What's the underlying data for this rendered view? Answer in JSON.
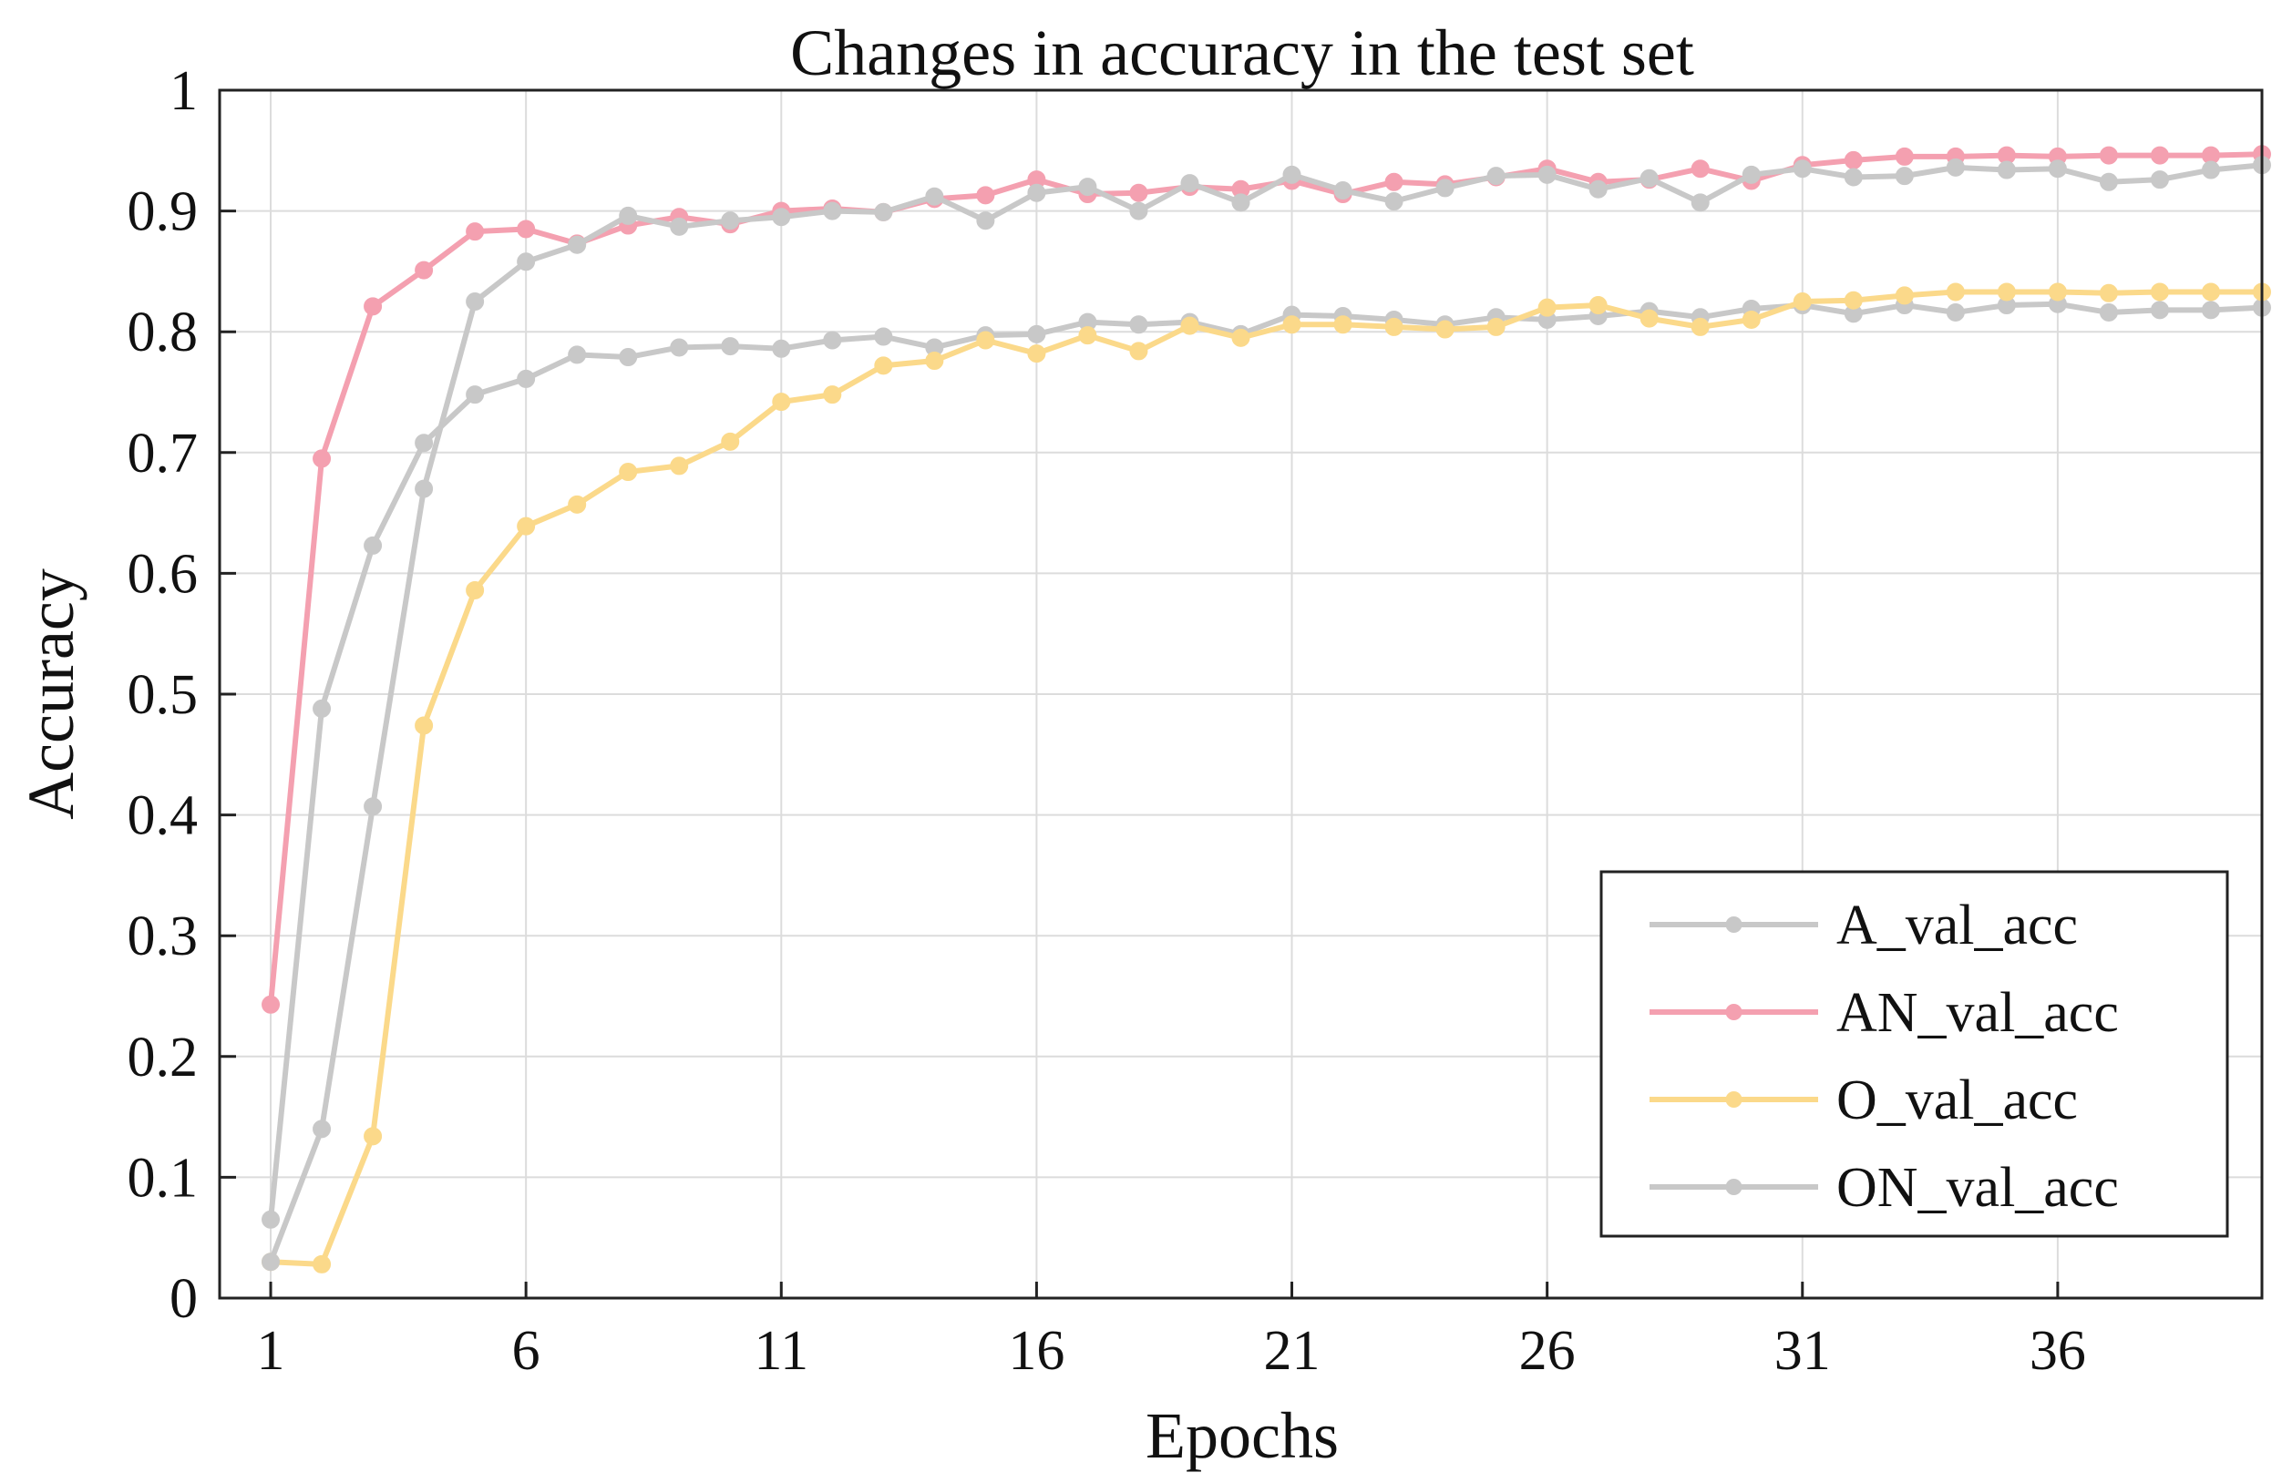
{
  "chart_data": {
    "type": "line",
    "title": "Changes in accuracy in the test set",
    "xlabel": "Epochs",
    "ylabel": "Accuracy",
    "xlim": [
      0,
      40
    ],
    "ylim": [
      0,
      1
    ],
    "xticks": [
      1,
      6,
      11,
      16,
      21,
      26,
      31,
      36
    ],
    "xtick_labels": [
      "1",
      "6",
      "11",
      "16",
      "21",
      "26",
      "31",
      "36"
    ],
    "yticks": [
      0,
      0.1,
      0.2,
      0.3,
      0.4,
      0.5,
      0.6,
      0.7,
      0.8,
      0.9,
      1
    ],
    "ytick_labels": [
      "0",
      "0.1",
      "0.2",
      "0.3",
      "0.4",
      "0.5",
      "0.6",
      "0.7",
      "0.8",
      "0.9",
      "1"
    ],
    "grid": true,
    "legend_position": "bottom-right",
    "x": [
      1,
      2,
      3,
      4,
      5,
      6,
      7,
      8,
      9,
      10,
      11,
      12,
      13,
      14,
      15,
      16,
      17,
      18,
      19,
      20,
      21,
      22,
      23,
      24,
      25,
      26,
      27,
      28,
      29,
      30,
      31,
      32,
      33,
      34,
      35,
      36,
      37,
      38,
      39,
      40
    ],
    "series": [
      {
        "name": "A_val_acc",
        "color": "#c8c8c8",
        "values": [
          0.065,
          0.488,
          0.623,
          0.708,
          0.748,
          0.761,
          0.781,
          0.779,
          0.787,
          0.788,
          0.786,
          0.793,
          0.796,
          0.787,
          0.797,
          0.798,
          0.808,
          0.806,
          0.808,
          0.798,
          0.814,
          0.813,
          0.81,
          0.806,
          0.812,
          0.81,
          0.813,
          0.817,
          0.812,
          0.819,
          0.822,
          0.815,
          0.822,
          0.816,
          0.822,
          0.823,
          0.816,
          0.818,
          0.818,
          0.82
        ]
      },
      {
        "name": "AN_val_acc",
        "color": "#f4a0b0",
        "values": [
          0.243,
          0.695,
          0.821,
          0.851,
          0.883,
          0.885,
          0.873,
          0.888,
          0.895,
          0.889,
          0.9,
          0.902,
          0.899,
          0.91,
          0.913,
          0.926,
          0.914,
          0.915,
          0.92,
          0.918,
          0.925,
          0.914,
          0.924,
          0.922,
          0.928,
          0.935,
          0.924,
          0.926,
          0.935,
          0.925,
          0.938,
          0.942,
          0.945,
          0.945,
          0.946,
          0.945,
          0.946,
          0.946,
          0.946,
          0.947
        ]
      },
      {
        "name": "O_val_acc",
        "color": "#fbd98a",
        "values": [
          0.03,
          0.028,
          0.134,
          0.474,
          0.586,
          0.639,
          0.657,
          0.684,
          0.689,
          0.709,
          0.742,
          0.748,
          0.772,
          0.776,
          0.793,
          0.782,
          0.797,
          0.784,
          0.805,
          0.795,
          0.806,
          0.806,
          0.804,
          0.802,
          0.804,
          0.82,
          0.822,
          0.811,
          0.804,
          0.81,
          0.825,
          0.826,
          0.83,
          0.833,
          0.833,
          0.833,
          0.832,
          0.833,
          0.833,
          0.833
        ]
      },
      {
        "name": "ON_val_acc",
        "color": "#c8c8c8",
        "values": [
          0.03,
          0.14,
          0.407,
          0.67,
          0.825,
          0.858,
          0.872,
          0.896,
          0.887,
          0.892,
          0.895,
          0.9,
          0.899,
          0.912,
          0.892,
          0.915,
          0.92,
          0.9,
          0.923,
          0.907,
          0.93,
          0.917,
          0.908,
          0.919,
          0.929,
          0.93,
          0.918,
          0.927,
          0.907,
          0.93,
          0.935,
          0.928,
          0.929,
          0.936,
          0.934,
          0.935,
          0.924,
          0.926,
          0.934,
          0.938
        ]
      }
    ]
  }
}
